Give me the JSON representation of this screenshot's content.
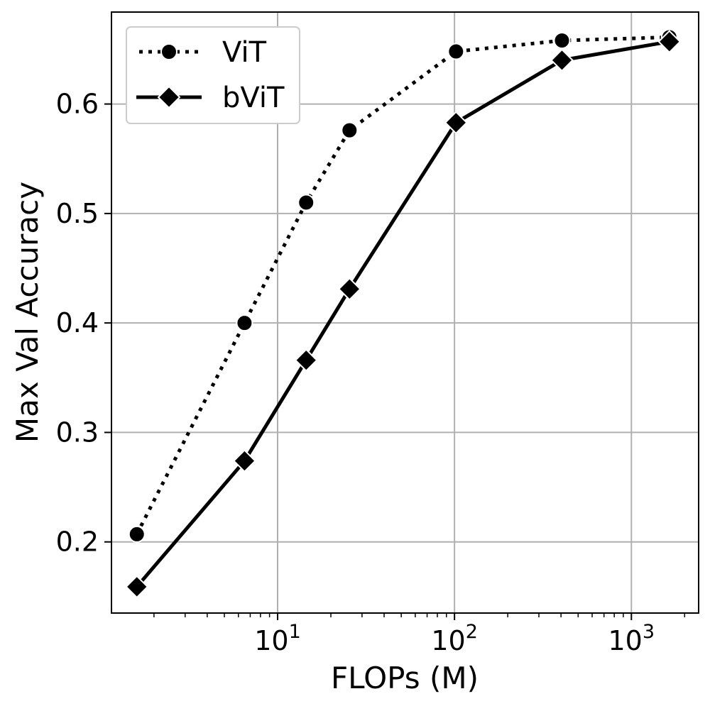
{
  "chart_data": {
    "type": "line",
    "xscale": "log",
    "xlabel": "FLOPs (M)",
    "ylabel": "Max Val Accuracy",
    "xlim": [
      1.15,
      2400
    ],
    "ylim": [
      0.135,
      0.684
    ],
    "grid": true,
    "legend_position": "top-left",
    "x_ticks": [
      {
        "value": 10,
        "base": "10",
        "exp": "1"
      },
      {
        "value": 100,
        "base": "10",
        "exp": "2"
      },
      {
        "value": 1000,
        "base": "10",
        "exp": "3"
      }
    ],
    "y_ticks": [
      {
        "value": 0.2,
        "label": "0.2"
      },
      {
        "value": 0.3,
        "label": "0.3"
      },
      {
        "value": 0.4,
        "label": "0.4"
      },
      {
        "value": 0.5,
        "label": "0.5"
      },
      {
        "value": 0.6,
        "label": "0.6"
      }
    ],
    "series": [
      {
        "name": "ViT",
        "line_style": "dotted",
        "marker": "circle",
        "color": "#000000",
        "x": [
          1.6,
          6.5,
          14.5,
          25.5,
          102,
          405,
          1640
        ],
        "y": [
          0.207,
          0.4,
          0.51,
          0.576,
          0.648,
          0.658,
          0.661
        ]
      },
      {
        "name": "bViT",
        "line_style": "solid",
        "marker": "diamond",
        "color": "#000000",
        "x": [
          1.6,
          6.5,
          14.5,
          25.5,
          102,
          405,
          1640
        ],
        "y": [
          0.159,
          0.274,
          0.366,
          0.431,
          0.583,
          0.64,
          0.657
        ]
      }
    ]
  }
}
